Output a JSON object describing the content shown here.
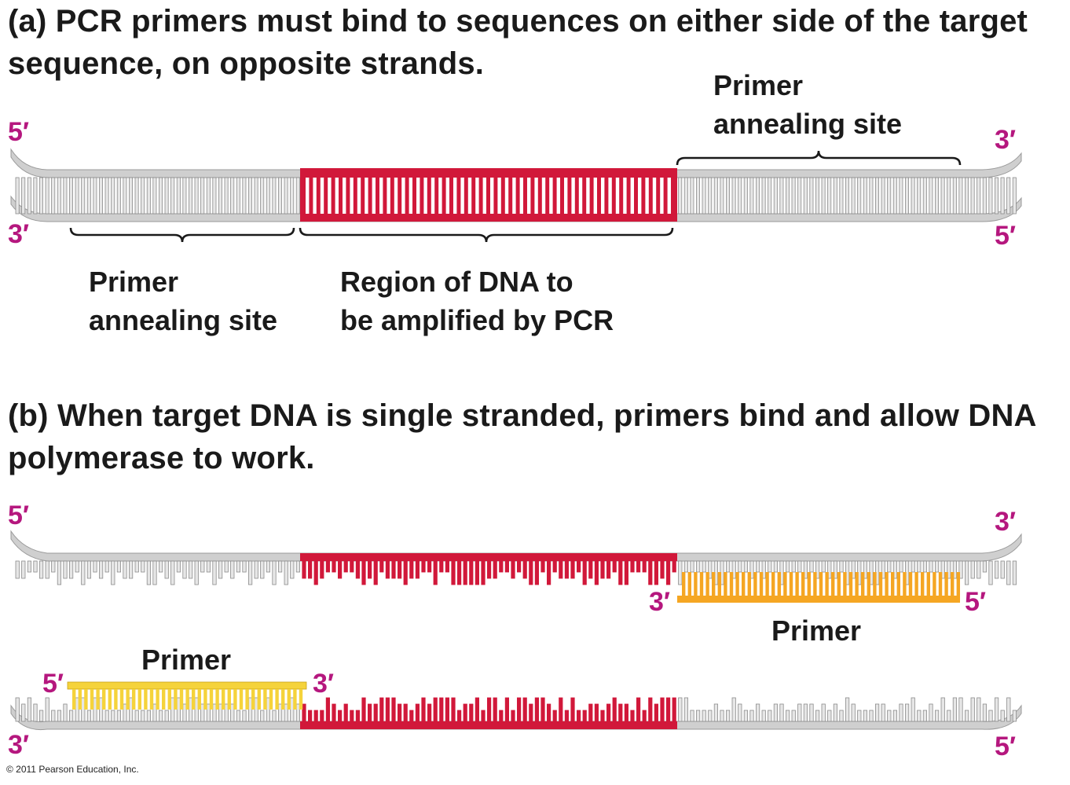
{
  "panel_a": {
    "heading": "(a) PCR primers must bind to sequences on either side of the target sequence, on opposite strands.",
    "label_right_line1": "Primer",
    "label_right_line2": "annealing site",
    "label_left_line1": "Primer",
    "label_left_line2": "annealing site",
    "label_region_line1": "Region of DNA to",
    "label_region_line2": "be amplified by PCR",
    "end_top_left": "5′",
    "end_top_right": "3′",
    "end_bottom_left": "3′",
    "end_bottom_right": "5′"
  },
  "panel_b": {
    "heading": "(b) When target DNA is single stranded, primers bind and allow DNA polymerase to work.",
    "top_strand": {
      "end_left": "5′",
      "end_right": "3′",
      "primer_end_left": "3′",
      "primer_end_right": "5′",
      "primer_label": "Primer"
    },
    "bottom_strand": {
      "end_left": "3′",
      "end_right": "5′",
      "primer_end_left": "5′",
      "primer_end_right": "3′",
      "primer_label": "Primer"
    }
  },
  "colors": {
    "backbone": "#cfcfcf",
    "target_region": "#d1183a",
    "primer_orange": "#f5a623",
    "primer_yellow": "#f5d33b",
    "end_label": "#b5177e",
    "bracket": "#1a1a1a"
  },
  "credit": "© 2011 Pearson Education, Inc."
}
